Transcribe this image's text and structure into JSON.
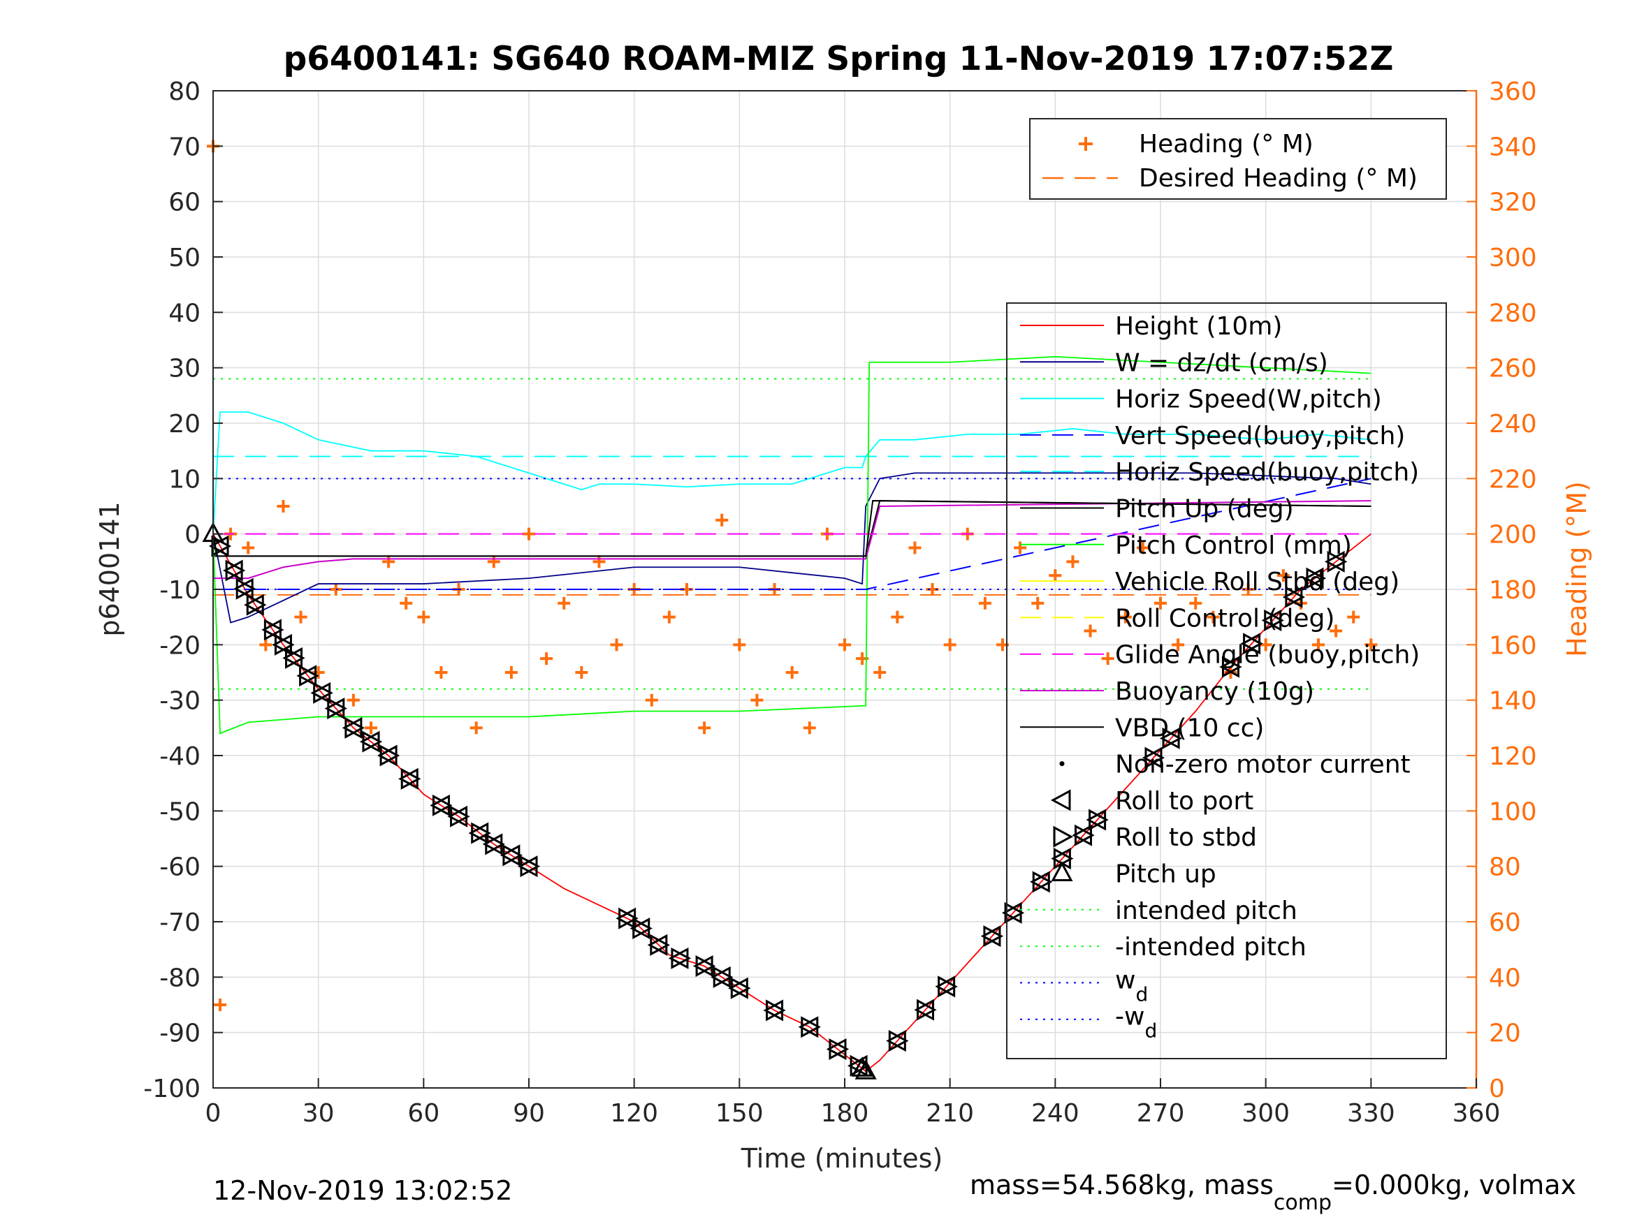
{
  "chart_data": {
    "type": "line",
    "title": "p6400141: SG640 ROAM-MIZ Spring 11-Nov-2019 17:07:52Z",
    "xlabel": "Time (minutes)",
    "ylabel_left": "p6400141",
    "ylabel_right": "Heading (°M)",
    "xlim": [
      0,
      360
    ],
    "ylim_left": [
      -100,
      80
    ],
    "ylim_right": [
      0,
      360
    ],
    "x_ticks": [
      0,
      30,
      60,
      90,
      120,
      150,
      180,
      210,
      240,
      270,
      300,
      330,
      360
    ],
    "y_ticks_left": [
      -100,
      -90,
      -80,
      -70,
      -60,
      -50,
      -40,
      -30,
      -20,
      -10,
      0,
      10,
      20,
      30,
      40,
      50,
      60,
      70,
      80
    ],
    "y_ticks_right": [
      0,
      20,
      40,
      60,
      80,
      100,
      120,
      140,
      160,
      180,
      200,
      220,
      240,
      260,
      280,
      300,
      320,
      340,
      360
    ],
    "grid": true,
    "colors": {
      "axis_left": "#262626",
      "axis_right": "#ff6d0c",
      "height": "#ff0000",
      "w": "#000088",
      "horiz_speed": "#00ffff",
      "vert_speed": "#0000ff",
      "pitch_up": "#000000",
      "pitch_control": "#00ff00",
      "vehicle_roll": "#ffff00",
      "glide_angle": "#ff00ff",
      "buoyancy": "#cc00cc",
      "heading": "#ff6d0c",
      "intended_pitch": "#00ff00",
      "wd": "#0000ff"
    },
    "legend_top": [
      "Heading (° M)",
      "Desired Heading (° M)"
    ],
    "legend_main": [
      "Height (10m)",
      "W = dz/dt (cm/s)",
      "Horiz Speed(W,pitch)",
      "Vert Speed(buoy,pitch)",
      "Horiz Speed(buoy,pitch)",
      "Pitch Up (deg)",
      "Pitch Control (mm)",
      "Vehicle Roll Stbd (deg)",
      "Roll Control (deg)",
      "Glide Angle (buoy,pitch)",
      "Buoyancy (10g)",
      "VBD (10 cc)",
      "Non-zero motor current",
      "Roll to port",
      "Roll to stbd",
      "Pitch up",
      "intended pitch",
      "-intended pitch"
    ],
    "legend_wd_base": "w",
    "legend_wd_sub": "d",
    "legend_neg_wd_base": "-w",
    "legend_legend_placement": "right",
    "series": [
      {
        "name": "Height (10m)",
        "axis": "left",
        "x": [
          0,
          10,
          20,
          30,
          40,
          50,
          60,
          70,
          80,
          90,
          100,
          110,
          120,
          130,
          140,
          150,
          160,
          170,
          180,
          186,
          190,
          200,
          210,
          220,
          230,
          240,
          250,
          260,
          270,
          280,
          290,
          300,
          310,
          320,
          330
        ],
        "values": [
          0,
          -11,
          -20,
          -28,
          -35,
          -40,
          -47,
          -51,
          -56,
          -60,
          -64,
          -67,
          -70,
          -76,
          -78,
          -82,
          -86,
          -89,
          -94,
          -97,
          -95,
          -88,
          -81,
          -74,
          -67,
          -60,
          -53,
          -46,
          -39,
          -32,
          -24,
          -17,
          -10,
          -5,
          0
        ]
      },
      {
        "name": "W = dz/dt (cm/s)",
        "axis": "left",
        "x": [
          0,
          5,
          10,
          30,
          60,
          90,
          120,
          150,
          180,
          185,
          186,
          190,
          200,
          240,
          280,
          320,
          330
        ],
        "values": [
          0,
          -16,
          -15,
          -9,
          -9,
          -8,
          -6,
          -6,
          -8,
          -9,
          5,
          10,
          11,
          11,
          11,
          10,
          9
        ]
      },
      {
        "name": "Horiz Speed(W,pitch)",
        "axis": "left",
        "x": [
          0,
          2,
          10,
          20,
          30,
          45,
          60,
          75,
          90,
          100,
          105,
          110,
          120,
          135,
          150,
          165,
          180,
          185,
          186,
          190,
          200,
          215,
          230,
          245,
          260,
          280,
          300,
          315,
          330
        ],
        "values": [
          0,
          22,
          22,
          20,
          17,
          15,
          15,
          14,
          11,
          9,
          8,
          9,
          9,
          8.5,
          9,
          9,
          12,
          12,
          14,
          17,
          17,
          18,
          18,
          19,
          18,
          18,
          17,
          18,
          17
        ]
      },
      {
        "name": "Vert Speed(buoy,pitch)",
        "axis": "left",
        "x": [
          0,
          186,
          330
        ],
        "values": [
          -10,
          -10,
          10
        ]
      },
      {
        "name": "Horiz Speed(buoy,pitch)",
        "axis": "left",
        "x": [
          0,
          5,
          186,
          190,
          330
        ],
        "values": [
          14,
          14,
          14,
          14,
          14
        ]
      },
      {
        "name": "Pitch Up (deg)",
        "axis": "left",
        "x": [
          0,
          186,
          190,
          330
        ],
        "values": [
          -4,
          -4,
          6,
          5
        ]
      },
      {
        "name": "Pitch Control (mm)",
        "axis": "left",
        "x": [
          0,
          2,
          10,
          30,
          60,
          90,
          120,
          150,
          186,
          187,
          190,
          210,
          240,
          270,
          300,
          330
        ],
        "values": [
          0,
          -36,
          -34,
          -33,
          -33,
          -33,
          -32,
          -32,
          -31,
          31,
          31,
          31,
          32,
          31,
          30,
          29
        ]
      },
      {
        "name": "Glide Angle (buoy,pitch)",
        "axis": "left",
        "x": [
          0,
          186,
          330
        ],
        "values": [
          0,
          0,
          0
        ]
      },
      {
        "name": "Buoyancy (10g)",
        "axis": "left",
        "x": [
          0,
          10,
          20,
          30,
          40,
          60,
          100,
          186,
          190,
          330
        ],
        "values": [
          -8,
          -8,
          -6,
          -5,
          -4.5,
          -4.5,
          -4.5,
          -4.5,
          5,
          6
        ]
      },
      {
        "name": "VBD (10 cc)",
        "axis": "left",
        "x": [
          0,
          1,
          186,
          188,
          330
        ],
        "values": [
          0,
          -4,
          -4,
          6,
          5
        ]
      },
      {
        "name": "Heading (° M)",
        "axis": "right",
        "x": [
          0,
          2,
          5,
          10,
          15,
          20,
          25,
          30,
          35,
          40,
          45,
          50,
          55,
          60,
          65,
          70,
          75,
          80,
          85,
          90,
          95,
          100,
          105,
          110,
          115,
          120,
          125,
          130,
          135,
          140,
          145,
          150,
          155,
          160,
          165,
          170,
          175,
          180,
          185,
          190,
          195,
          200,
          205,
          210,
          215,
          220,
          225,
          230,
          235,
          240,
          245,
          250,
          255,
          260,
          265,
          270,
          275,
          280,
          285,
          290,
          295,
          300,
          305,
          310,
          315,
          320,
          325,
          330
        ],
        "values": [
          340,
          30,
          200,
          195,
          160,
          210,
          170,
          150,
          180,
          140,
          130,
          190,
          175,
          170,
          150,
          180,
          130,
          190,
          150,
          200,
          155,
          175,
          150,
          190,
          160,
          180,
          140,
          170,
          180,
          130,
          205,
          160,
          140,
          180,
          150,
          130,
          200,
          160,
          155,
          150,
          170,
          195,
          180,
          160,
          200,
          175,
          160,
          195,
          175,
          185,
          190,
          165,
          155,
          170,
          195,
          175,
          160,
          175,
          170,
          150,
          180,
          160,
          185,
          175,
          160,
          165,
          170,
          160
        ]
      },
      {
        "name": "Desired Heading (° M)",
        "axis": "right",
        "x": [
          0,
          330
        ],
        "values": [
          178,
          178
        ]
      },
      {
        "name": "intended pitch",
        "axis": "left",
        "x": [
          0,
          330
        ],
        "values": [
          28,
          28
        ]
      },
      {
        "name": "-intended pitch",
        "axis": "left",
        "x": [
          0,
          330
        ],
        "values": [
          -28,
          -28
        ]
      },
      {
        "name": "w_d",
        "axis": "left",
        "x": [
          0,
          330
        ],
        "values": [
          10,
          10
        ]
      },
      {
        "name": "-w_d",
        "axis": "left",
        "x": [
          0,
          330
        ],
        "values": [
          -10,
          -10
        ]
      }
    ],
    "markers": {
      "roll_to_port_x": [
        2,
        6,
        9,
        12,
        17,
        20,
        23,
        27,
        31,
        35,
        40,
        45,
        50,
        56,
        65,
        70,
        76,
        80,
        85,
        90,
        118,
        122,
        127,
        133,
        140,
        145,
        150,
        160,
        170,
        178,
        184,
        195,
        203,
        209,
        222,
        228,
        236,
        242,
        248,
        252,
        268,
        273,
        290,
        296,
        302,
        308,
        314,
        320
      ],
      "pitch_up_x": [
        0,
        185,
        186
      ]
    }
  },
  "footer": {
    "left_timestamp": "12-Nov-2019 13:02:52",
    "mass_text_a": "mass=54.568kg, mass",
    "mass_sub": "comp",
    "mass_text_b": "=0.000kg, volmax"
  }
}
